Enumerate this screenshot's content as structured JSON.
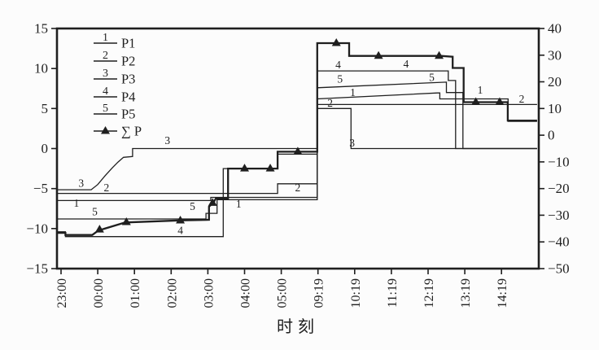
{
  "window": {
    "background": "#fcfcfc"
  },
  "chart_data": {
    "type": "line",
    "title": "",
    "xlabel": "时刻",
    "ylabel_left": "",
    "ylabel_right": "",
    "grid": false,
    "legend_position": "top-left-inside",
    "colors": {
      "line": "#1f1f1f",
      "background": "#fcfcfc"
    },
    "x_tick_labels": [
      "23:00",
      "00:00",
      "01:00",
      "02:00",
      "03:00",
      "04:00",
      "05:00",
      "09:19",
      "10:19",
      "11:19",
      "12:19",
      "13:19",
      "14:19"
    ],
    "left_axis": {
      "range": [
        -15,
        15
      ],
      "tick_values": [
        15,
        10,
        5,
        0,
        -5,
        -10,
        -15
      ],
      "ticks": [
        "15",
        "10",
        "5",
        "0",
        "−5",
        "−10",
        "−15"
      ]
    },
    "right_axis": {
      "range": [
        -50,
        40
      ],
      "tick_values": [
        40,
        30,
        20,
        10,
        0,
        -10,
        -20,
        -30,
        -40,
        -50
      ],
      "ticks": [
        "40",
        "30",
        "20",
        "10",
        "0",
        "−10",
        "−20",
        "−30",
        "−40",
        "−50"
      ]
    },
    "legend": [
      {
        "num": "1",
        "label": "P1"
      },
      {
        "num": "2",
        "label": "P2"
      },
      {
        "num": "3",
        "label": "P3"
      },
      {
        "num": "4",
        "label": "P4"
      },
      {
        "num": "5",
        "label": "P5"
      },
      {
        "num": "",
        "label": "∑ P",
        "marker": "triangle"
      }
    ],
    "series": [
      {
        "name": "P1",
        "axis": "left",
        "width": 1.3,
        "points": [
          [
            -0.1,
            -6.5
          ],
          [
            4.08,
            -6.5
          ],
          [
            4.08,
            -6.1
          ],
          [
            6.98,
            -6.1
          ],
          [
            6.98,
            6.2
          ],
          [
            10.25,
            6.95
          ],
          [
            10.32,
            6.95
          ],
          [
            10.32,
            6.2
          ],
          [
            12.18,
            6.2
          ],
          [
            12.18,
            3.4
          ],
          [
            12.97,
            3.4
          ]
        ]
      },
      {
        "name": "P2",
        "axis": "left",
        "width": 1.3,
        "points": [
          [
            -0.1,
            -5.6
          ],
          [
            5.9,
            -5.6
          ],
          [
            5.9,
            -4.4
          ],
          [
            6.98,
            -4.4
          ],
          [
            6.98,
            5.5
          ],
          [
            12.97,
            5.5
          ]
        ]
      },
      {
        "name": "P3",
        "axis": "left",
        "width": 1.3,
        "points": [
          [
            -0.1,
            -5.15
          ],
          [
            0.82,
            -5.15
          ],
          [
            1.0,
            -4.5
          ],
          [
            1.2,
            -3.4
          ],
          [
            1.4,
            -2.4
          ],
          [
            1.55,
            -1.7
          ],
          [
            1.7,
            -1.1
          ],
          [
            1.95,
            -1.0
          ],
          [
            1.95,
            0
          ],
          [
            6.98,
            0
          ],
          [
            6.98,
            5.0
          ],
          [
            7.9,
            5.0
          ],
          [
            7.9,
            0
          ],
          [
            12.97,
            0
          ]
        ]
      },
      {
        "name": "P4",
        "axis": "left",
        "width": 1.3,
        "points": [
          [
            -0.1,
            -10.4
          ],
          [
            0.12,
            -10.4
          ],
          [
            0.12,
            -11.0
          ],
          [
            4.42,
            -11.0
          ],
          [
            4.42,
            -2.5
          ],
          [
            5.9,
            -2.5
          ],
          [
            5.9,
            -0.7
          ],
          [
            6.98,
            -0.7
          ],
          [
            6.98,
            9.7
          ],
          [
            10.55,
            9.7
          ],
          [
            10.55,
            8.5
          ],
          [
            10.75,
            8.5
          ],
          [
            10.75,
            0
          ],
          [
            12.97,
            0
          ]
        ]
      },
      {
        "name": "P5",
        "axis": "left",
        "width": 1.3,
        "points": [
          [
            -0.1,
            -8.8
          ],
          [
            3.95,
            -8.8
          ],
          [
            3.95,
            -8.1
          ],
          [
            4.25,
            -8.1
          ],
          [
            4.25,
            -6.4
          ],
          [
            6.98,
            -6.4
          ],
          [
            6.98,
            7.6
          ],
          [
            10.5,
            8.3
          ],
          [
            10.5,
            7.0
          ],
          [
            10.95,
            7.0
          ],
          [
            10.95,
            0
          ],
          [
            12.97,
            0
          ]
        ]
      },
      {
        "name": "∑P",
        "axis": "right",
        "width": 2.3,
        "marker": "triangle",
        "points": [
          [
            -0.1,
            -36.6
          ],
          [
            0.12,
            -36.6
          ],
          [
            0.12,
            -37.4
          ],
          [
            0.85,
            -37.4
          ],
          [
            1.05,
            -35.4
          ],
          [
            1.1,
            -35.4
          ],
          [
            1.75,
            -32.7
          ],
          [
            3.3,
            -31.9
          ],
          [
            4.03,
            -31.7
          ],
          [
            4.03,
            -26.8
          ],
          [
            4.15,
            -25.3
          ],
          [
            4.22,
            -23.7
          ],
          [
            4.55,
            -23.7
          ],
          [
            4.55,
            -12.5
          ],
          [
            5.9,
            -12.5
          ],
          [
            5.9,
            -6.2
          ],
          [
            6.98,
            -6.2
          ],
          [
            6.98,
            34.5
          ],
          [
            7.85,
            34.5
          ],
          [
            7.85,
            29.7
          ],
          [
            10.35,
            29.7
          ],
          [
            10.67,
            29.4
          ],
          [
            10.67,
            25.2
          ],
          [
            10.97,
            25.2
          ],
          [
            10.97,
            12.4
          ],
          [
            12.17,
            12.4
          ],
          [
            12.17,
            5.5
          ],
          [
            12.97,
            5.5
          ]
        ],
        "marker_points": [
          [
            1.05,
            -35.4
          ],
          [
            1.78,
            -32.6
          ],
          [
            3.25,
            -32.0
          ],
          [
            4.13,
            -25.4
          ],
          [
            5.0,
            -12.5
          ],
          [
            5.7,
            -12.5
          ],
          [
            6.45,
            -6.2
          ],
          [
            7.5,
            34.5
          ],
          [
            8.65,
            29.7
          ],
          [
            10.3,
            29.7
          ],
          [
            11.3,
            12.4
          ],
          [
            11.95,
            12.4
          ]
        ]
      }
    ],
    "inline_labels": [
      {
        "text": "3",
        "i": 0.55,
        "v": -4.3
      },
      {
        "text": "2",
        "i": 1.24,
        "v": -4.9
      },
      {
        "text": "1",
        "i": 0.42,
        "v": -6.8
      },
      {
        "text": "5",
        "i": 0.92,
        "v": -7.9
      },
      {
        "text": "4",
        "i": 3.25,
        "v": -10.2
      },
      {
        "text": "3",
        "i": 2.9,
        "v": 1.0
      },
      {
        "text": "5",
        "i": 3.58,
        "v": -7.2
      },
      {
        "text": "1",
        "i": 4.84,
        "v": -6.9
      },
      {
        "text": "2",
        "i": 6.45,
        "v": -4.9
      },
      {
        "text": "3",
        "i": 7.93,
        "v": 0.7
      },
      {
        "text": "2",
        "i": 7.33,
        "v": 5.7
      },
      {
        "text": "1",
        "i": 7.95,
        "v": 7.0
      },
      {
        "text": "5",
        "i": 7.6,
        "v": 8.7
      },
      {
        "text": "4",
        "i": 7.55,
        "v": 10.5
      },
      {
        "text": "4",
        "i": 9.4,
        "v": 10.6
      },
      {
        "text": "5",
        "i": 10.1,
        "v": 8.9
      },
      {
        "text": "1",
        "i": 11.42,
        "v": 7.3
      },
      {
        "text": "2",
        "i": 12.55,
        "v": 6.2
      }
    ]
  }
}
